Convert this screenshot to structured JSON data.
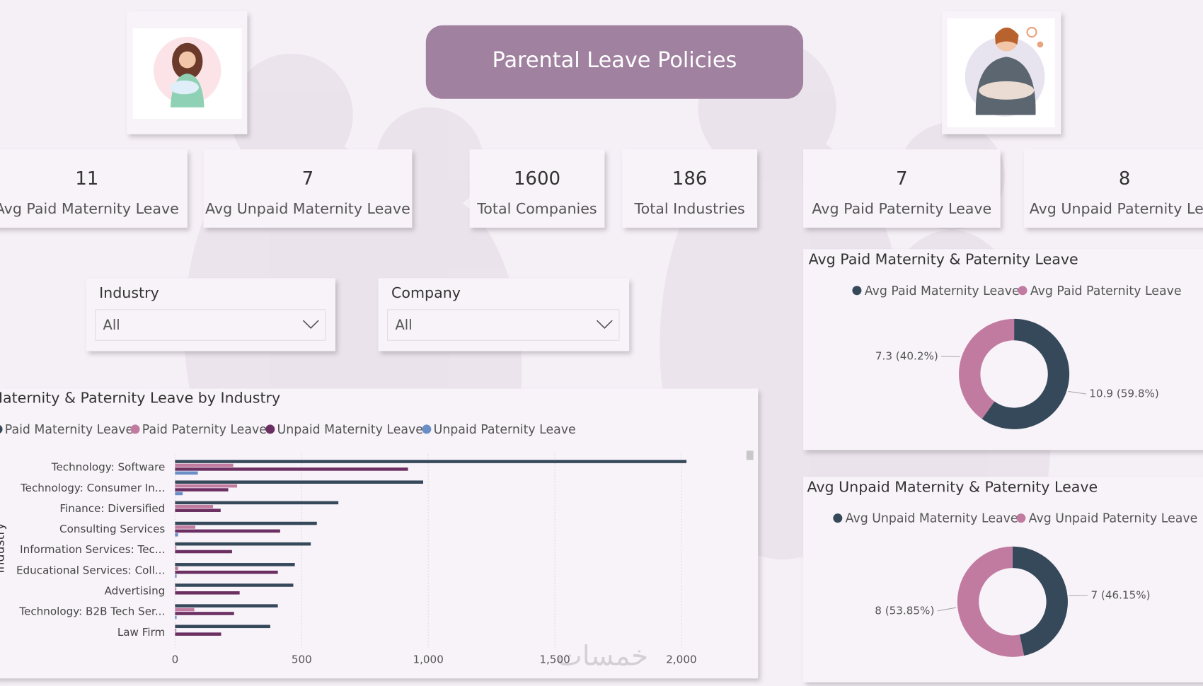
{
  "header": {
    "title": "Parental Leave Policies"
  },
  "kpis": [
    {
      "value": 11,
      "label": "Avg Paid Maternity Leave"
    },
    {
      "value": 7,
      "label": "Avg Unpaid Maternity Leave"
    },
    {
      "value": 1600,
      "label": "Total Companies"
    },
    {
      "value": 186,
      "label": "Total Industries"
    },
    {
      "value": 7,
      "label": "Avg Paid Paternity Leave"
    },
    {
      "value": 8,
      "label": "Avg Unpaid Paternity Leave"
    }
  ],
  "slicers": [
    {
      "label": "Industry",
      "selection": "All"
    },
    {
      "label": "Company",
      "selection": "All"
    }
  ],
  "watermark": "خمسات",
  "chart_data": [
    {
      "type": "hbar",
      "title": "Maternity & Paternity Leave by Industry",
      "y_label": "Industry",
      "categories": [
        "Technology: Software",
        "Technology: Consumer In...",
        "Finance: Diversified",
        "Consulting Services",
        "Information Services: Tec...",
        "Educational Services: Coll...",
        "Advertising",
        "Technology: B2B Tech Ser...",
        "Law Firm"
      ],
      "series": [
        {
          "name": "Paid Maternity Leave",
          "color": "#36495a",
          "values": [
            2020,
            980,
            645,
            560,
            536,
            473,
            467,
            406,
            376
          ]
        },
        {
          "name": "Paid Paternity Leave",
          "color": "#c27ba0",
          "values": [
            230,
            245,
            150,
            80,
            5,
            12,
            5,
            76,
            5
          ]
        },
        {
          "name": "Unpaid Maternity Leave",
          "color": "#6b2f62",
          "values": [
            920,
            210,
            180,
            415,
            225,
            406,
            255,
            233,
            182
          ]
        },
        {
          "name": "Unpaid Paternity Leave",
          "color": "#6a8fc7",
          "values": [
            90,
            30,
            0,
            12,
            0,
            6,
            0,
            6,
            0
          ]
        }
      ],
      "xlim": [
        0,
        2060
      ],
      "xticks": [
        0,
        500,
        {
          "value": 1000,
          "label": "1,000"
        },
        {
          "value": 1500,
          "label": "1,500"
        },
        {
          "value": 2000,
          "label": "2,000"
        }
      ],
      "grid": true
    },
    {
      "type": "donut",
      "title": "Avg Paid Maternity & Paternity Leave",
      "categories": [
        "Avg Paid Maternity Leave",
        "Avg Paid Paternity Leave"
      ],
      "colors": [
        "#36495a",
        "#c27ba0"
      ],
      "values": [
        10.9,
        7.3
      ],
      "value_labels": [
        "10.9 (59.8%)",
        "7.3 (40.2%)"
      ]
    },
    {
      "type": "donut",
      "title": "Avg Unpaid Maternity & Paternity Leave",
      "categories": [
        "Avg Unpaid Maternity Leave",
        "Avg Unpaid Paternity Leave"
      ],
      "colors": [
        "#36495a",
        "#c27ba0"
      ],
      "values": [
        7,
        8
      ],
      "value_labels": [
        "7 (46.15%)",
        "8 (53.85%)"
      ]
    }
  ]
}
